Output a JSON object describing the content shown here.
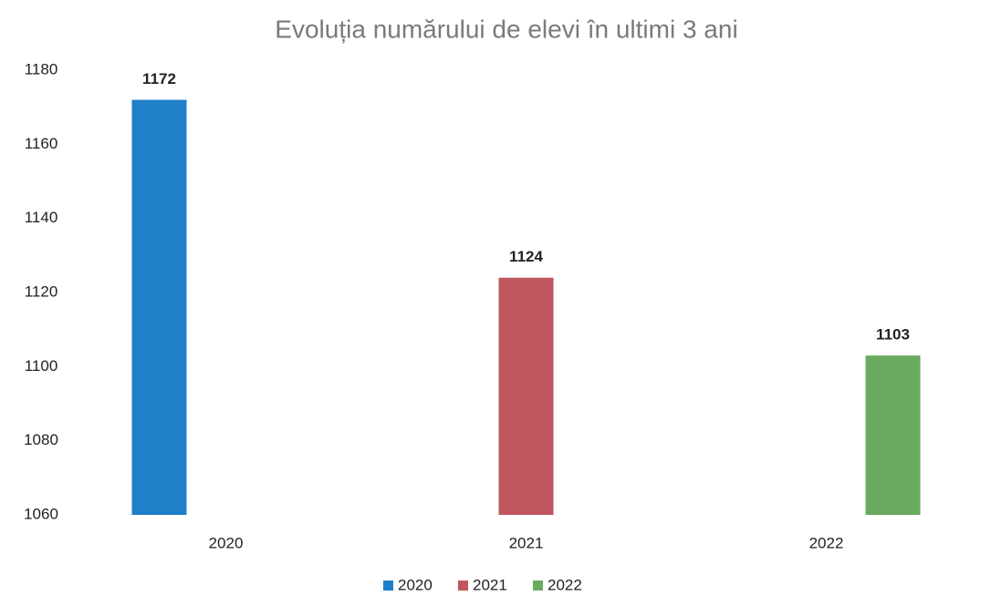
{
  "chart_data": {
    "type": "bar",
    "title": "Evoluția numărului de elevi în ultimi 3 ani",
    "categories": [
      "2020",
      "2021",
      "2022"
    ],
    "series": [
      {
        "name": "2020",
        "color": "#1f7fc9",
        "values": [
          1172,
          null,
          null
        ]
      },
      {
        "name": "2021",
        "color": "#c0565e",
        "values": [
          null,
          1124,
          null
        ]
      },
      {
        "name": "2022",
        "color": "#6aaa5f",
        "values": [
          null,
          null,
          1103
        ]
      }
    ],
    "ylim": [
      1060,
      1180
    ],
    "yticks": [
      1060,
      1080,
      1100,
      1120,
      1140,
      1160,
      1180
    ],
    "grid": false,
    "legend": "bottom"
  }
}
